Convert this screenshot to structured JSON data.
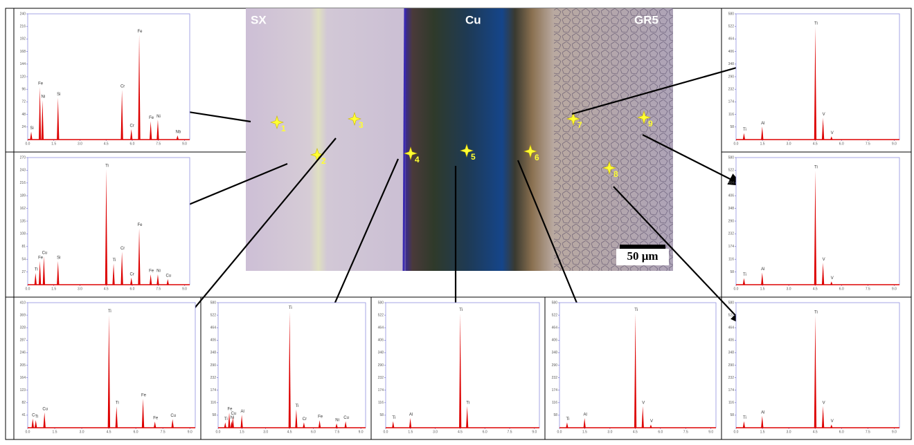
{
  "micrograph": {
    "regions": [
      "SX",
      "Cu",
      "GR5"
    ],
    "scale_bar": "50 μm",
    "points": [
      "1",
      "2",
      "3",
      "4",
      "5",
      "6",
      "7",
      "8",
      "9"
    ]
  },
  "chart_data": [
    {
      "type": "spectrum",
      "color": "#dd0000",
      "xlim": [
        0,
        9.3
      ],
      "ylim": [
        0,
        240
      ],
      "xticks": [
        {
          "value": 0,
          "label": "0.0"
        },
        1.5,
        {
          "value": 3,
          "label": "3.0"
        },
        4.5,
        {
          "value": 6,
          "label": "6.0"
        },
        7.5,
        {
          "value": 9,
          "label": "9.0"
        }
      ],
      "yticks": [
        24,
        48,
        72,
        96,
        120,
        144,
        168,
        192,
        216,
        240
      ],
      "x": [
        0.2,
        0.7,
        0.85,
        1.74,
        5.41,
        5.95,
        6.4,
        7.06,
        7.47,
        8.6
      ],
      "values": [
        15,
        100,
        75,
        80,
        95,
        20,
        200,
        35,
        38,
        8
      ],
      "peak_labels": [
        "Si",
        "Fe",
        "Ni",
        "Si",
        "Cr",
        "Cr",
        "Fe",
        "Fe",
        "Ni",
        "Nb"
      ]
    },
    {
      "type": "spectrum",
      "color": "#dd0000",
      "xlim": [
        0,
        9.3
      ],
      "ylim": [
        0,
        270
      ],
      "xticks": [
        {
          "value": 0,
          "label": "0.0"
        },
        1.5,
        {
          "value": 3,
          "label": "3.0"
        },
        4.5,
        {
          "value": 6,
          "label": "6.0"
        },
        7.5,
        {
          "value": 9,
          "label": "9.0"
        }
      ],
      "yticks": [
        27,
        54,
        81,
        108,
        135,
        162,
        189,
        216,
        243,
        270
      ],
      "x": [
        0.45,
        0.7,
        0.93,
        1.74,
        4.51,
        4.93,
        5.41,
        5.95,
        6.4,
        7.06,
        7.47,
        8.04
      ],
      "values": [
        25,
        50,
        60,
        50,
        245,
        45,
        70,
        15,
        120,
        22,
        22,
        12
      ],
      "peak_labels": [
        "Ti",
        "Fe",
        "Cu",
        "Si",
        "Ti",
        "Ti",
        "Cr",
        "Cr",
        "Fe",
        "Fe",
        "Ni",
        "Cu"
      ]
    },
    {
      "type": "spectrum",
      "color": "#dd0000",
      "xlim": [
        0,
        9.3
      ],
      "ylim": [
        0,
        410
      ],
      "xticks": [
        {
          "value": 0,
          "label": "0.0"
        },
        1.5,
        {
          "value": 3,
          "label": "3.0"
        },
        4.5,
        {
          "value": 6,
          "label": "6.0"
        },
        7.5,
        {
          "value": 9,
          "label": "9.0"
        }
      ],
      "yticks": [
        41,
        82,
        123,
        164,
        205,
        246,
        287,
        328,
        369,
        410
      ],
      "x": [
        0.28,
        0.45,
        0.93,
        4.51,
        4.93,
        6.4,
        7.06,
        8.04
      ],
      "values": [
        30,
        25,
        50,
        370,
        70,
        95,
        20,
        28
      ],
      "peak_labels": [
        "C",
        "Ti",
        "Cu",
        "Ti",
        "Ti",
        "Fe",
        "Fe",
        "Cu"
      ]
    },
    {
      "type": "spectrum",
      "color": "#dd0000",
      "xlim": [
        0,
        9.3
      ],
      "ylim": [
        0,
        580
      ],
      "xticks": [
        {
          "value": 0,
          "label": "0.0"
        },
        1.5,
        {
          "value": 3,
          "label": "3.0"
        },
        4.5,
        {
          "value": 6,
          "label": "6.0"
        },
        7.5,
        {
          "value": 9,
          "label": "9.0"
        }
      ],
      "yticks": [
        58,
        116,
        174,
        232,
        290,
        348,
        406,
        464,
        522,
        580
      ],
      "x": [
        0.45,
        0.7,
        0.85,
        0.93,
        1.49,
        4.51,
        4.93,
        5.41,
        6.4,
        7.47,
        8.04
      ],
      "values": [
        25,
        70,
        30,
        50,
        60,
        540,
        85,
        25,
        35,
        20,
        30
      ],
      "peak_labels": [
        "Ti",
        "Fe",
        "Ni",
        "Cu",
        "Al",
        "Ti",
        "Ti",
        "Cr",
        "Fe",
        "Ni",
        "Cu"
      ]
    },
    {
      "type": "spectrum",
      "color": "#dd0000",
      "xlim": [
        0,
        9.3
      ],
      "ylim": [
        0,
        580
      ],
      "xticks": [
        {
          "value": 0,
          "label": "0.0"
        },
        1.5,
        {
          "value": 3,
          "label": "3.0"
        },
        4.5,
        {
          "value": 6,
          "label": "6.0"
        },
        7.5,
        {
          "value": 9,
          "label": "9.0"
        }
      ],
      "yticks": [
        58,
        116,
        174,
        232,
        290,
        348,
        406,
        464,
        522,
        580
      ],
      "x": [
        0.45,
        1.49,
        4.51,
        4.93
      ],
      "values": [
        30,
        45,
        530,
        100
      ],
      "peak_labels": [
        "Ti",
        "Al",
        "Ti",
        "Ti"
      ]
    },
    {
      "type": "spectrum",
      "color": "#dd0000",
      "xlim": [
        0,
        9.3
      ],
      "ylim": [
        0,
        580
      ],
      "xticks": [
        {
          "value": 0,
          "label": "0.0"
        },
        1.5,
        {
          "value": 3,
          "label": "3.0"
        },
        4.5,
        {
          "value": 6,
          "label": "6.0"
        },
        7.5,
        {
          "value": 9,
          "label": "9.0"
        }
      ],
      "yticks": [
        58,
        116,
        174,
        232,
        290,
        348,
        406,
        464,
        522,
        580
      ],
      "x": [
        0.45,
        1.49,
        4.51,
        4.95,
        5.43
      ],
      "values": [
        25,
        45,
        530,
        100,
        15
      ],
      "peak_labels": [
        "Ti",
        "Al",
        "Ti",
        "V",
        "V"
      ]
    },
    {
      "type": "spectrum",
      "color": "#dd0000",
      "xlim": [
        0,
        9.3
      ],
      "ylim": [
        0,
        580
      ],
      "xticks": [
        {
          "value": 0,
          "label": "0.0"
        },
        1.5,
        {
          "value": 3,
          "label": "3.0"
        },
        4.5,
        {
          "value": 6,
          "label": "6.0"
        },
        7.5,
        {
          "value": 9,
          "label": "9.0"
        }
      ],
      "yticks": [
        58,
        116,
        174,
        232,
        290,
        348,
        406,
        464,
        522,
        580
      ],
      "x": [
        0.45,
        1.49,
        4.51,
        4.95,
        5.43
      ],
      "values": [
        30,
        60,
        520,
        100,
        15
      ],
      "peak_labels": [
        "Ti",
        "Al",
        "Ti",
        "V",
        "V"
      ]
    },
    {
      "type": "spectrum",
      "color": "#dd0000",
      "xlim": [
        0,
        9.3
      ],
      "ylim": [
        0,
        580
      ],
      "xticks": [
        {
          "value": 0,
          "label": "0.0"
        },
        1.5,
        {
          "value": 3,
          "label": "3.0"
        },
        4.5,
        {
          "value": 6,
          "label": "6.0"
        },
        7.5,
        {
          "value": 9,
          "label": "9.0"
        }
      ],
      "yticks": [
        58,
        116,
        174,
        232,
        290,
        348,
        406,
        464,
        522,
        580
      ],
      "x": [
        0.45,
        1.49,
        4.51,
        4.95,
        5.43
      ],
      "values": [
        30,
        55,
        520,
        100,
        15
      ],
      "peak_labels": [
        "Ti",
        "Al",
        "Ti",
        "V",
        "V"
      ]
    },
    {
      "type": "spectrum",
      "color": "#dd0000",
      "xlim": [
        0,
        9.3
      ],
      "ylim": [
        0,
        580
      ],
      "xticks": [
        {
          "value": 0,
          "label": "0.0"
        },
        1.5,
        {
          "value": 3,
          "label": "3.0"
        },
        4.5,
        {
          "value": 6,
          "label": "6.0"
        },
        7.5,
        {
          "value": 9,
          "label": "9.0"
        }
      ],
      "yticks": [
        58,
        116,
        174,
        232,
        290,
        348,
        406,
        464,
        522,
        580
      ],
      "x": [
        0.45,
        1.49,
        4.51,
        4.95,
        5.43
      ],
      "values": [
        30,
        55,
        520,
        100,
        15
      ],
      "peak_labels": [
        "Ti",
        "Al",
        "Ti",
        "V",
        "V"
      ]
    }
  ]
}
